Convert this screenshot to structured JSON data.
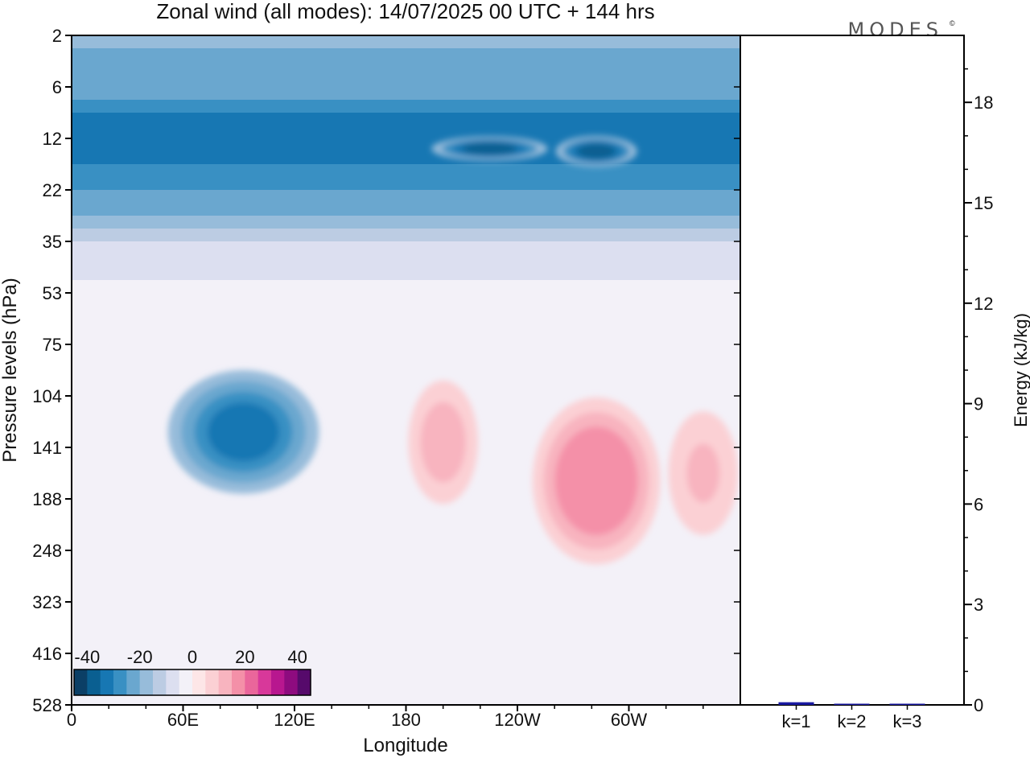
{
  "chart_data": {
    "type": "heatmap",
    "title": "Zonal wind (all modes):  14/07/2025  00 UTC  + 144 hrs",
    "brand": "MODES",
    "brand_mark": "©",
    "xlabel": "Longitude",
    "ylabel": "Pressure levels (hPa)",
    "x_ticks": [
      "0",
      "60E",
      "120E",
      "180",
      "120W",
      "60W"
    ],
    "x_tick_lon": [
      0,
      60,
      120,
      180,
      240,
      300
    ],
    "xlim": [
      0,
      360
    ],
    "y_ticks": [
      "2",
      "6",
      "12",
      "22",
      "35",
      "53",
      "75",
      "104",
      "141",
      "188",
      "248",
      "323",
      "416",
      "528"
    ],
    "colorbar": {
      "tick_labels": [
        "-40",
        "-20",
        "0",
        "20",
        "40"
      ],
      "tick_values": [
        -40,
        -20,
        0,
        20,
        40
      ],
      "range": [
        -45,
        45
      ],
      "colors": [
        "#0b3f66",
        "#0a5f91",
        "#1777b3",
        "#3990c3",
        "#6aa7cf",
        "#97bcda",
        "#bccce3",
        "#dcdff0",
        "#f3f1f8",
        "#fde6e7",
        "#fbd0d4",
        "#f8b4bf",
        "#f490a8",
        "#ea669b",
        "#d8389a",
        "#b8178f",
        "#8e0b7f",
        "#560a6b"
      ]
    },
    "fields": [
      {
        "name": "stratospheric-easterlies",
        "value": -28,
        "ybands": [
          1.6,
          2.6
        ],
        "shape": "band"
      },
      {
        "name": "jet-core-1",
        "value": -38,
        "lon": [
          200,
          250
        ],
        "level": [
          2.0,
          2.4
        ]
      },
      {
        "name": "jet-core-2",
        "value": -38,
        "lon": [
          265,
          300
        ],
        "level": [
          2.0,
          2.5
        ]
      },
      {
        "name": "upper-easterly-cell",
        "value": -32,
        "lon": [
          60,
          125
        ],
        "level": [
          6.7,
          8.7
        ]
      },
      {
        "name": "westerly-cell-1",
        "value": 12,
        "lon": [
          185,
          215
        ],
        "level": [
          6.9,
          8.9
        ]
      },
      {
        "name": "westerly-cell-2",
        "value": 18,
        "lon": [
          255,
          310
        ],
        "level": [
          7.3,
          10.0
        ]
      },
      {
        "name": "westerly-cell-3",
        "value": 10,
        "lon": [
          325,
          355
        ],
        "level": [
          7.5,
          9.5
        ]
      }
    ],
    "energy_axis": {
      "label": "Energy (kJ/kg)",
      "ticks": [
        "0",
        "3",
        "6",
        "9",
        "12",
        "15",
        "18"
      ],
      "tick_values": [
        0,
        3,
        6,
        9,
        12,
        15,
        18
      ],
      "ylim": [
        0,
        20
      ]
    },
    "energy_bars": {
      "type": "bar",
      "categories": [
        "k=1",
        "k=2",
        "k=3"
      ],
      "values": [
        0.08,
        0.03,
        0.02
      ],
      "color": "#1a1aa0"
    }
  }
}
